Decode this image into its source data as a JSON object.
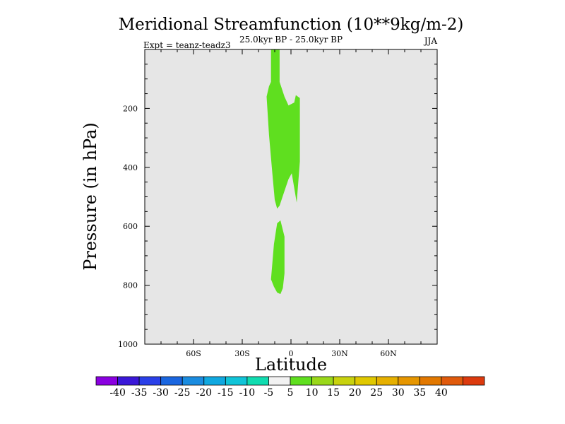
{
  "chart_data": {
    "type": "contour",
    "title": "Meridional Streamfunction (10**9kg/m-2)",
    "subtitle_center": "25.0kyr BP - 25.0kyr BP",
    "subtitle_left": "Expt = teanz-teadz3",
    "subtitle_right": "JJA",
    "xlabel": "Latitude",
    "ylabel": "Pressure (in hPa)",
    "xlim": [
      -90,
      90
    ],
    "ylim": [
      1000,
      0
    ],
    "x_ticks": [
      {
        "value": -60,
        "label": "60S"
      },
      {
        "value": -30,
        "label": "30S"
      },
      {
        "value": 0,
        "label": "0"
      },
      {
        "value": 30,
        "label": "30N"
      },
      {
        "value": 60,
        "label": "60N"
      }
    ],
    "y_ticks": [
      {
        "value": 200,
        "label": "200"
      },
      {
        "value": 400,
        "label": "400"
      },
      {
        "value": 600,
        "label": "600"
      },
      {
        "value": 800,
        "label": "800"
      },
      {
        "value": 1000,
        "label": "1000"
      }
    ],
    "background_color": "#e6e6e6",
    "regions": [
      {
        "name": "upper-positive-cell",
        "range": "5 to 10",
        "color": "#5fdf1f",
        "polygon": [
          [
            -12.3,
            0
          ],
          [
            -7.0,
            0
          ],
          [
            -7.0,
            110
          ],
          [
            -4.0,
            160
          ],
          [
            -1.5,
            190
          ],
          [
            2.0,
            180
          ],
          [
            3.0,
            155
          ],
          [
            5.5,
            165
          ],
          [
            5.5,
            380
          ],
          [
            3.5,
            520
          ],
          [
            2.0,
            470
          ],
          [
            0.5,
            420
          ],
          [
            -1.5,
            440
          ],
          [
            -4.0,
            480
          ],
          [
            -7.0,
            530
          ],
          [
            -8.5,
            540
          ],
          [
            -10.0,
            510
          ],
          [
            -11.5,
            420
          ],
          [
            -13.5,
            290
          ],
          [
            -15.0,
            160
          ],
          [
            -13.5,
            125
          ],
          [
            -12.3,
            110
          ]
        ]
      },
      {
        "name": "lower-positive-cell",
        "range": "5 to 10",
        "color": "#5fdf1f",
        "polygon": [
          [
            -8.5,
            590
          ],
          [
            -6.5,
            580
          ],
          [
            -4.0,
            635
          ],
          [
            -4.0,
            760
          ],
          [
            -5.0,
            810
          ],
          [
            -6.5,
            830
          ],
          [
            -8.5,
            825
          ],
          [
            -10.5,
            805
          ],
          [
            -12.3,
            780
          ],
          [
            -10.5,
            660
          ]
        ]
      }
    ],
    "colorbar": {
      "labels": [
        "-40",
        "-35",
        "-30",
        "-25",
        "-20",
        "-15",
        "-10",
        "-5",
        "5",
        "10",
        "15",
        "20",
        "25",
        "30",
        "35",
        "40"
      ],
      "colors": [
        "#8a00e0",
        "#3a18d8",
        "#2a40e8",
        "#1a66e0",
        "#1a8ce0",
        "#10a8e0",
        "#10c4d8",
        "#10dcb0",
        "#f2f2f2",
        "#5fdf1f",
        "#9ad81a",
        "#c8d20e",
        "#e0c800",
        "#e6b000",
        "#e69600",
        "#e27800",
        "#e05a0c",
        "#dc3a0e"
      ]
    }
  }
}
